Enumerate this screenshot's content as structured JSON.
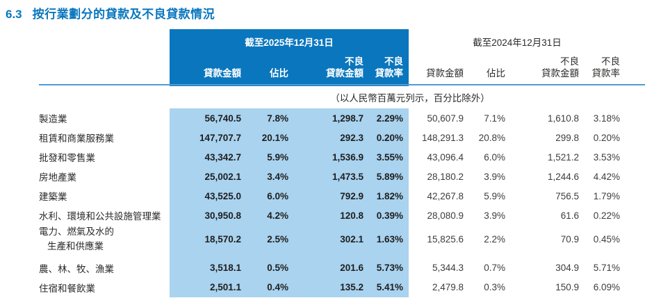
{
  "title": {
    "number": "6.3",
    "text": "按行業劃分的貸款及不良貸款情況"
  },
  "table": {
    "period_2025": "截至2025年12月31日",
    "period_2024": "截至2024年12月31日",
    "columns": {
      "loan_amount": "貸款金額",
      "proportion": "佔比",
      "npl_amount_line1": "不良",
      "npl_amount_line2": "貸款金額",
      "npl_ratio_line1": "不良",
      "npl_ratio_line2": "貸款率"
    },
    "unit_note": "（以人民幣百萬元列示，百分比除外）",
    "rows": [
      {
        "industry": "製造業",
        "y2025": [
          "56,740.5",
          "7.8%",
          "1,298.7",
          "2.29%"
        ],
        "y2024": [
          "50,607.9",
          "7.1%",
          "1,610.8",
          "3.18%"
        ]
      },
      {
        "industry": "租賃和商業服務業",
        "y2025": [
          "147,707.7",
          "20.1%",
          "292.3",
          "0.20%"
        ],
        "y2024": [
          "148,291.3",
          "20.8%",
          "299.8",
          "0.20%"
        ]
      },
      {
        "industry": "批發和零售業",
        "y2025": [
          "43,342.7",
          "5.9%",
          "1,536.9",
          "3.55%"
        ],
        "y2024": [
          "43,096.4",
          "6.0%",
          "1,521.2",
          "3.53%"
        ]
      },
      {
        "industry": "房地產業",
        "y2025": [
          "25,002.1",
          "3.4%",
          "1,473.5",
          "5.89%"
        ],
        "y2024": [
          "28,180.2",
          "3.9%",
          "1,244.6",
          "4.42%"
        ]
      },
      {
        "industry": "建築業",
        "y2025": [
          "43,525.0",
          "6.0%",
          "792.9",
          "1.82%"
        ],
        "y2024": [
          "42,267.8",
          "5.9%",
          "756.5",
          "1.79%"
        ]
      },
      {
        "industry": "水利、環境和公共設施管理業",
        "y2025": [
          "30,950.8",
          "4.2%",
          "120.8",
          "0.39%"
        ],
        "y2024": [
          "28,080.9",
          "3.9%",
          "61.6",
          "0.22%"
        ]
      },
      {
        "industry": "電力、燃氣及水的",
        "industry_line2": "生產和供應業",
        "y2025": [
          "18,570.2",
          "2.5%",
          "302.1",
          "1.63%"
        ],
        "y2024": [
          "15,825.6",
          "2.2%",
          "70.9",
          "0.45%"
        ]
      },
      {
        "industry": "農、林、牧、漁業",
        "y2025": [
          "3,518.1",
          "0.5%",
          "201.6",
          "5.73%"
        ],
        "y2024": [
          "5,344.3",
          "0.7%",
          "304.9",
          "5.71%"
        ]
      },
      {
        "industry": "住宿和餐飲業",
        "y2025": [
          "2,501.1",
          "0.4%",
          "135.2",
          "5.41%"
        ],
        "y2024": [
          "2,479.8",
          "0.3%",
          "150.9",
          "6.09%"
        ]
      }
    ]
  },
  "colors": {
    "accent_blue": "#0a76be",
    "band_light_blue": "#a9d3ef",
    "divider_blue": "#4e9cd6",
    "text_dark": "#2b2b2a"
  }
}
